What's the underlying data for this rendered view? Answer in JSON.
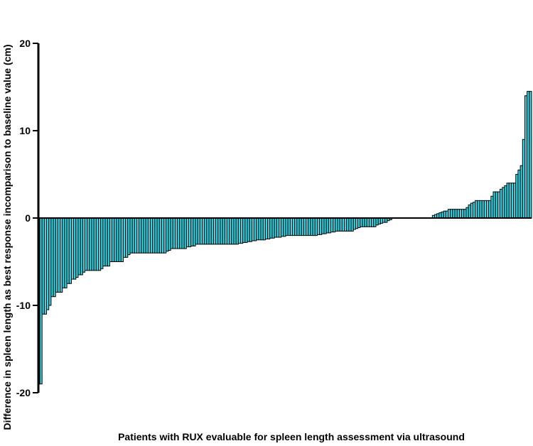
{
  "chart_data": {
    "type": "bar",
    "title": "",
    "xlabel": "Patients with RUX evaluable for spleen length assessment via ultrasound",
    "ylabel": "Difference in spleen length as best response incomparison to baseline value (cm)",
    "ylim": [
      -20,
      20
    ],
    "yticks": [
      -20,
      -10,
      0,
      10,
      20
    ],
    "grid": false,
    "legend": "none",
    "bar_fill": "#3ad8e6",
    "bar_stroke": "#000000",
    "values": [
      -19,
      -11,
      -11,
      -10.5,
      -10,
      -9,
      -9,
      -8.5,
      -8.5,
      -8.5,
      -8,
      -8,
      -7.5,
      -7.5,
      -7,
      -7,
      -6.8,
      -6.5,
      -6.5,
      -6.2,
      -6,
      -6,
      -6,
      -6,
      -6,
      -6,
      -6,
      -5.8,
      -5.5,
      -5.5,
      -5.5,
      -5,
      -5,
      -5,
      -5,
      -5,
      -5,
      -4.5,
      -4.5,
      -4.2,
      -4,
      -4,
      -4,
      -4,
      -4,
      -4,
      -4,
      -4,
      -4,
      -4,
      -4,
      -4,
      -4,
      -4,
      -4,
      -4,
      -3.8,
      -3.7,
      -3.5,
      -3.5,
      -3.5,
      -3.5,
      -3.5,
      -3.5,
      -3.5,
      -3.3,
      -3.3,
      -3.2,
      -3.2,
      -3,
      -3,
      -3,
      -3,
      -3,
      -3,
      -3,
      -3,
      -3,
      -3,
      -3,
      -3,
      -3,
      -3,
      -3,
      -3,
      -3,
      -3,
      -3,
      -2.9,
      -2.9,
      -2.8,
      -2.8,
      -2.7,
      -2.7,
      -2.6,
      -2.6,
      -2.5,
      -2.5,
      -2.5,
      -2.5,
      -2.4,
      -2.4,
      -2.3,
      -2.3,
      -2.2,
      -2.2,
      -2.2,
      -2.1,
      -2.1,
      -2,
      -2,
      -2,
      -2,
      -2,
      -2,
      -2,
      -2,
      -2,
      -2,
      -2,
      -2,
      -2,
      -2,
      -1.9,
      -1.9,
      -1.8,
      -1.8,
      -1.7,
      -1.7,
      -1.6,
      -1.6,
      -1.5,
      -1.5,
      -1.5,
      -1.5,
      -1.5,
      -1.5,
      -1.5,
      -1.5,
      -1.3,
      -1.2,
      -1.1,
      -1,
      -1,
      -1,
      -1,
      -1,
      -1,
      -1,
      -0.8,
      -0.7,
      -0.6,
      -0.5,
      -0.5,
      -0.3,
      -0.2,
      0,
      0,
      0,
      0,
      0,
      0,
      0,
      0,
      0,
      0,
      0,
      0,
      0,
      0,
      0,
      0,
      0,
      0,
      0.3,
      0.4,
      0.5,
      0.6,
      0.7,
      0.8,
      0.8,
      1,
      1,
      1,
      1,
      1,
      1,
      1,
      1,
      1.2,
      1.5,
      1.7,
      1.8,
      2,
      2,
      2,
      2,
      2,
      2,
      2,
      2.5,
      3,
      3,
      3,
      3.3,
      3.5,
      3.7,
      4,
      4,
      4,
      4,
      5,
      5.5,
      6,
      9,
      14,
      14.5,
      14.5
    ]
  }
}
